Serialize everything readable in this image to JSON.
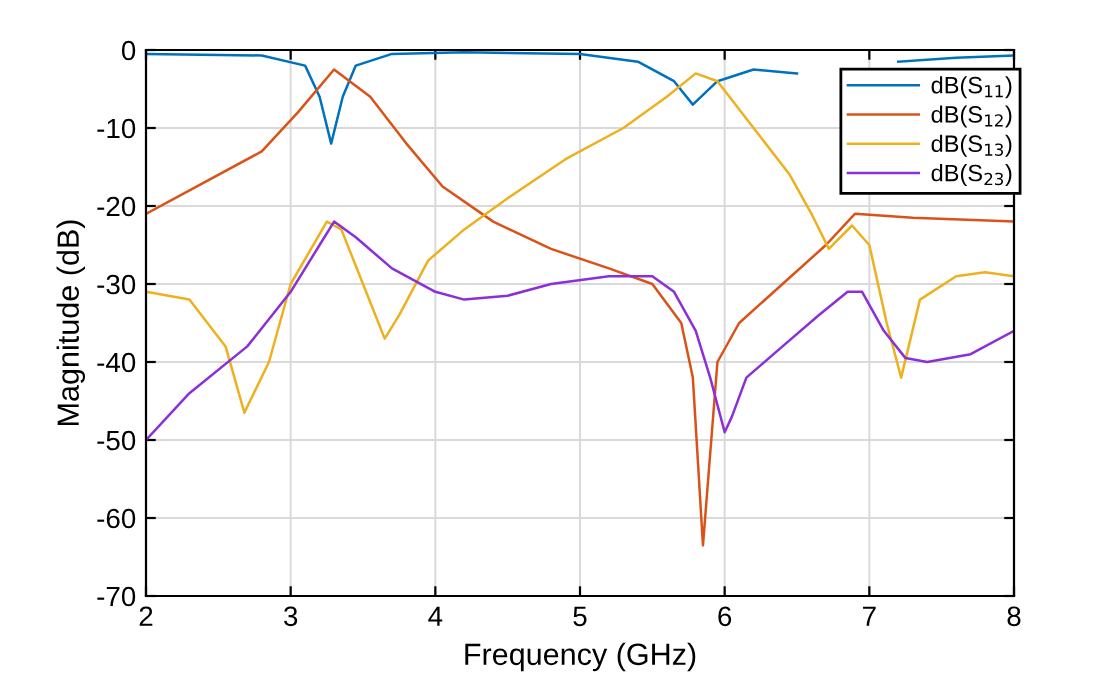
{
  "chart_data": {
    "type": "line",
    "xlabel": "Frequency (GHz)",
    "ylabel": "Magnitude (dB)",
    "xlim": [
      2,
      8
    ],
    "ylim": [
      -70,
      0
    ],
    "xticks": [
      2,
      3,
      4,
      5,
      6,
      7,
      8
    ],
    "yticks": [
      -70,
      -60,
      -50,
      -40,
      -30,
      -20,
      -10,
      0
    ],
    "grid": true,
    "legend": "top right",
    "marker": "none",
    "line_style": "solid",
    "series": [
      {
        "name": "dB(S$_{11}$)",
        "color": "#0072bd",
        "x": [
          2,
          2.8,
          3.1,
          3.2,
          3.28,
          3.36,
          3.45,
          3.7,
          4.2,
          5,
          5.4,
          5.65,
          5.78,
          5.95,
          6.2,
          6.5,
          6.8,
          7.2,
          7.6,
          8
        ],
        "values": [
          -0.5,
          -0.7,
          -2,
          -6,
          -12,
          -6,
          -2,
          -0.5,
          -0.3,
          -0.5,
          -1.5,
          -4,
          -7,
          -4,
          -2.5,
          -3,
          null,
          -1.5,
          -1,
          -0.7
        ]
      },
      {
        "name": "dB(S$_{12}$)",
        "color": "#d95319",
        "x": [
          2,
          2.4,
          2.8,
          3.05,
          3.3,
          3.55,
          3.8,
          4.05,
          4.4,
          4.8,
          5.2,
          5.5,
          5.7,
          5.78,
          5.85,
          5.95,
          6.1,
          6.4,
          6.7,
          6.9,
          7.3,
          8
        ],
        "values": [
          -21,
          -17,
          -13,
          -8,
          -2.5,
          -6,
          -12,
          -17.5,
          -22,
          -25.5,
          -28,
          -30,
          -35,
          -42,
          -63.5,
          -40,
          -35,
          -30,
          -25,
          -21,
          -21.5,
          -22
        ]
      },
      {
        "name": "dB(S$_{13}$)",
        "color": "#edb120",
        "x": [
          2,
          2.3,
          2.55,
          2.68,
          2.85,
          3.0,
          3.25,
          3.35,
          3.5,
          3.65,
          3.75,
          3.95,
          4.2,
          4.5,
          4.9,
          5.3,
          5.6,
          5.8,
          5.95,
          6.2,
          6.45,
          6.6,
          6.72,
          6.88,
          7.0,
          7.12,
          7.22,
          7.35,
          7.6,
          7.8,
          8
        ],
        "values": [
          -31,
          -32,
          -38,
          -46.5,
          -40,
          -30,
          -22,
          -23,
          -30,
          -37,
          -34,
          -27,
          -23,
          -19,
          -14,
          -10,
          -6,
          -3,
          -4,
          -10,
          -16,
          -21,
          -25.5,
          -22.5,
          -25,
          -35,
          -42,
          -32,
          -29,
          -28.5,
          -29
        ]
      },
      {
        "name": "dB(S$_{23}$)",
        "color": "#8b2fd6",
        "x": [
          2,
          2.3,
          2.7,
          3.0,
          3.2,
          3.3,
          3.45,
          3.7,
          4.0,
          4.2,
          4.5,
          4.8,
          5.2,
          5.5,
          5.65,
          5.8,
          5.9,
          6.0,
          6.05,
          6.15,
          6.4,
          6.65,
          6.85,
          6.95,
          7.1,
          7.25,
          7.4,
          7.7,
          8
        ],
        "values": [
          -50,
          -44,
          -38,
          -31,
          -25,
          -22,
          -24,
          -28,
          -31,
          -32,
          -31.5,
          -30,
          -29,
          -29,
          -31,
          -36,
          -42,
          -49,
          -47,
          -42,
          -38,
          -34,
          -31,
          -31,
          -36,
          -39.5,
          -40,
          -39,
          -36
        ]
      }
    ]
  }
}
